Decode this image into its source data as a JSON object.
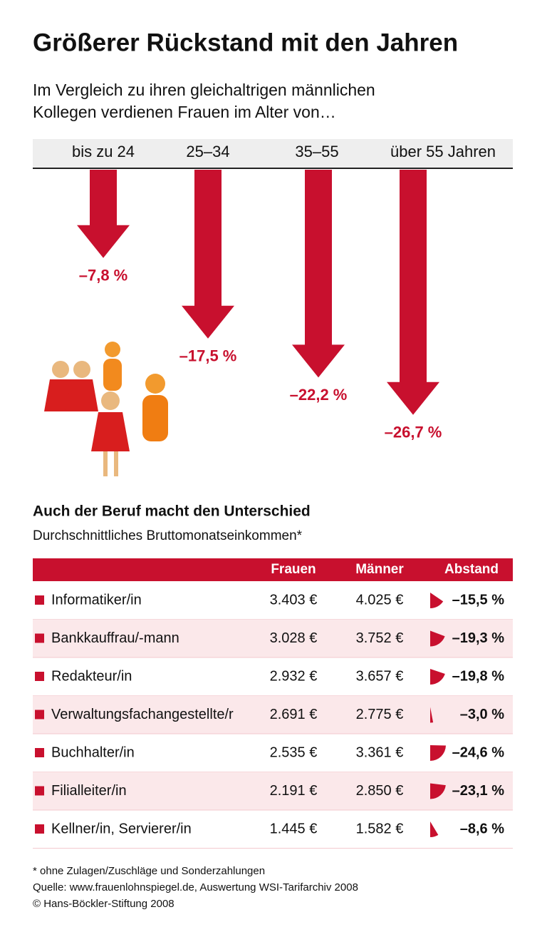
{
  "title": "Größerer Rückstand mit den Jahren",
  "subtitle_lines": [
    "Im Vergleich zu ihren gleichaltrigen männlichen",
    "Kollegen verdienen Frauen im Alter von…"
  ],
  "chart_data": {
    "type": "arrow",
    "categories": [
      "bis zu 24",
      "25–34",
      "35–55",
      "über 55 Jahren"
    ],
    "values": [
      -7.8,
      -17.5,
      -22.2,
      -26.7
    ],
    "value_labels": [
      "–7,8 %",
      "–17,5 %",
      "–22,2 %",
      "–26,7 %"
    ],
    "color": "#c8102e"
  },
  "table": {
    "title": "Auch der Beruf macht den Unterschied",
    "subtitle": "Durchschnittliches Bruttomonatseinkommen*",
    "columns": [
      "Frauen",
      "Männer",
      "Abstand"
    ],
    "rows": [
      {
        "label": "Informatiker/in",
        "frauen": "3.403 €",
        "maenner": "4.025 €",
        "abstand": -15.5,
        "abstand_label": "–15,5 %"
      },
      {
        "label": "Bankkauffrau/-mann",
        "frauen": "3.028 €",
        "maenner": "3.752 €",
        "abstand": -19.3,
        "abstand_label": "–19,3 %"
      },
      {
        "label": "Redakteur/in",
        "frauen": "2.932 €",
        "maenner": "3.657 €",
        "abstand": -19.8,
        "abstand_label": "–19,8 %"
      },
      {
        "label": "Verwaltungsfachangestellte/r",
        "frauen": "2.691 €",
        "maenner": "2.775 €",
        "abstand": -3.0,
        "abstand_label": "–3,0 %"
      },
      {
        "label": "Buchhalter/in",
        "frauen": "2.535 €",
        "maenner": "3.361 €",
        "abstand": -24.6,
        "abstand_label": "–24,6 %"
      },
      {
        "label": "Filialleiter/in",
        "frauen": "2.191 €",
        "maenner": "2.850 €",
        "abstand": -23.1,
        "abstand_label": "–23,1 %"
      },
      {
        "label": "Kellner/in, Servierer/in",
        "frauen": "1.445 €",
        "maenner": "1.582 €",
        "abstand": -8.6,
        "abstand_label": "–8,6 %"
      }
    ]
  },
  "footnotes": [
    "* ohne Zulagen/Zuschläge und Sonderzahlungen",
    "Quelle: www.frauenlohnspiegel.de, Auswertung WSI-Tarifarchiv 2008",
    "© Hans-Böckler-Stiftung 2008"
  ]
}
